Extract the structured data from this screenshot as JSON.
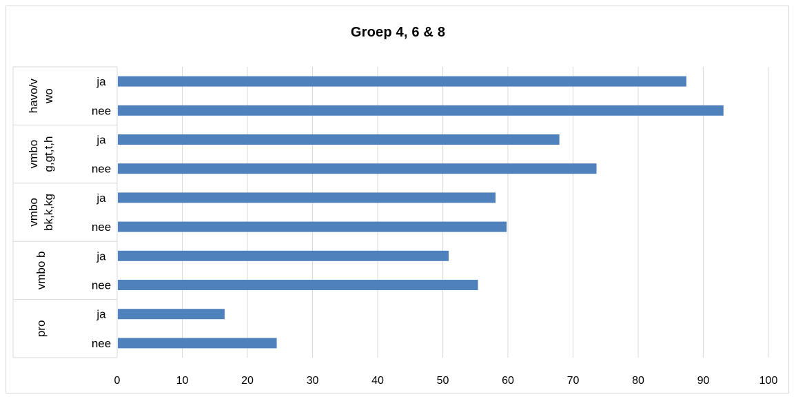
{
  "chart_data": {
    "type": "bar",
    "orientation": "horizontal",
    "title": "Groep 4, 6  & 8",
    "xlim": [
      0,
      100
    ],
    "x_ticks": [
      "0",
      "10",
      "20",
      "30",
      "40",
      "50",
      "60",
      "70",
      "80",
      "90",
      "100"
    ],
    "grid": true,
    "legend": "none",
    "bar_color": "#4f81bd",
    "groups": [
      {
        "label_lines": [
          "havo/v",
          "wo"
        ],
        "items": [
          {
            "label": "ja",
            "value": 87.4
          },
          {
            "label": "nee",
            "value": 93.1
          }
        ]
      },
      {
        "label_lines": [
          "vmbo",
          "g,gt,t,h"
        ],
        "items": [
          {
            "label": "ja",
            "value": 67.9
          },
          {
            "label": "nee",
            "value": 73.6
          }
        ]
      },
      {
        "label_lines": [
          "vmbo",
          "bk,k,kg"
        ],
        "items": [
          {
            "label": "ja",
            "value": 58.1
          },
          {
            "label": "nee",
            "value": 59.8
          }
        ]
      },
      {
        "label_lines": [
          "vmbo b"
        ],
        "items": [
          {
            "label": "ja",
            "value": 50.9
          },
          {
            "label": "nee",
            "value": 55.4
          }
        ]
      },
      {
        "label_lines": [
          "pro"
        ],
        "items": [
          {
            "label": "ja",
            "value": 16.5
          },
          {
            "label": "nee",
            "value": 24.5
          }
        ]
      }
    ]
  }
}
